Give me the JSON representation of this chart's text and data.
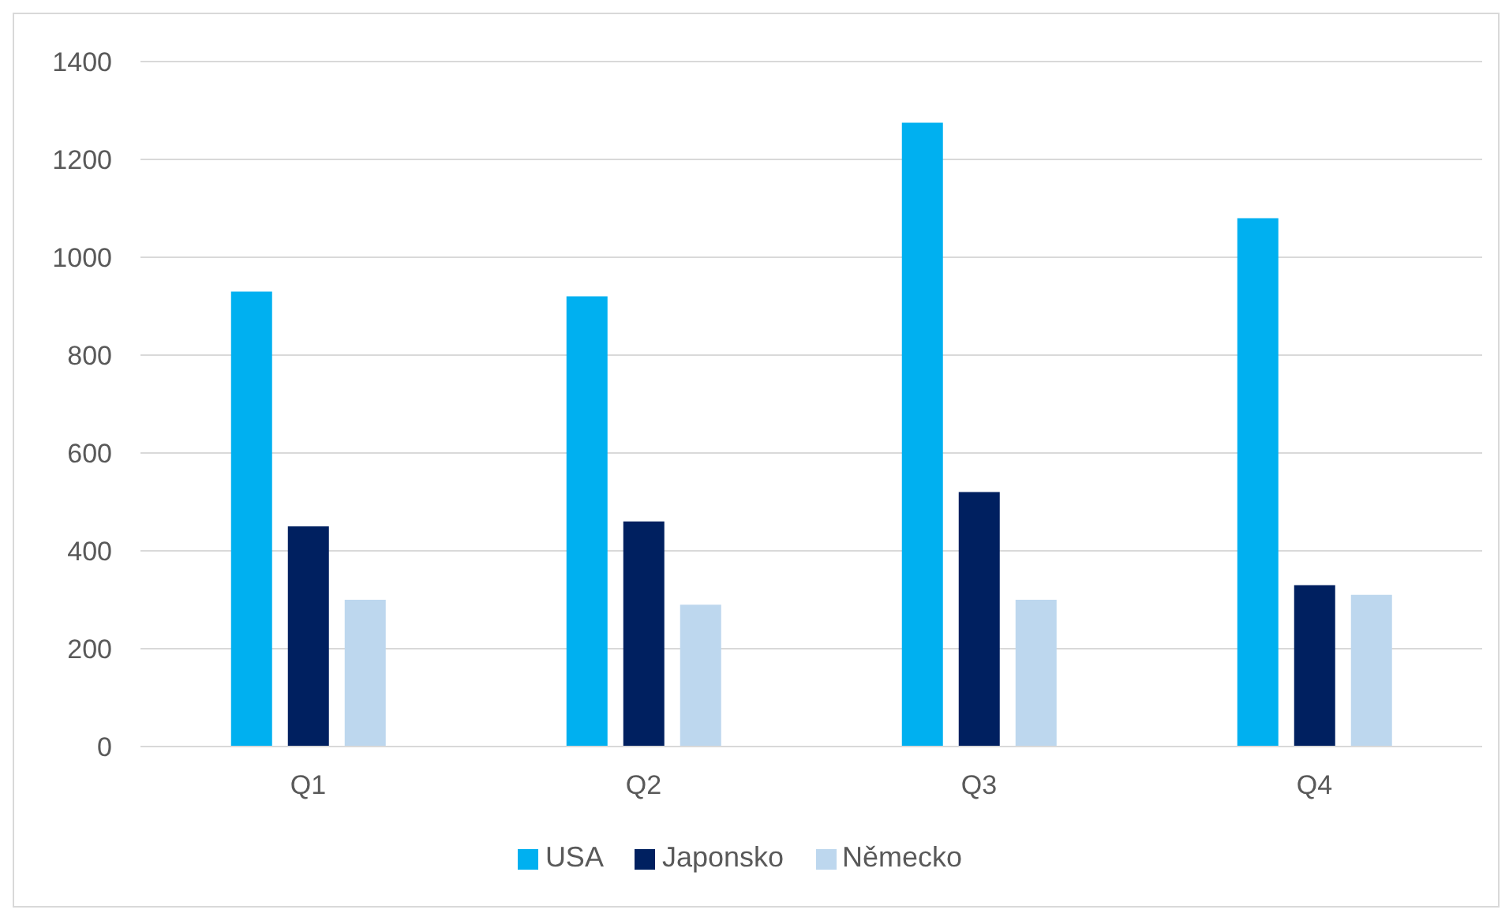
{
  "chart_data": {
    "type": "bar",
    "categories": [
      "Q1",
      "Q2",
      "Q3",
      "Q4"
    ],
    "series": [
      {
        "name": "USA",
        "color": "#00b0f0",
        "values": [
          930,
          920,
          1275,
          1080
        ]
      },
      {
        "name": "Japonsko",
        "color": "#002060",
        "values": [
          450,
          460,
          520,
          330
        ]
      },
      {
        "name": "Německo",
        "color": "#bdd7ee",
        "values": [
          300,
          290,
          300,
          310
        ]
      }
    ],
    "ylim": [
      0,
      1400
    ],
    "yticks": [
      0,
      200,
      400,
      600,
      800,
      1000,
      1200,
      1400
    ],
    "grid": "y",
    "legend": "bottom"
  }
}
